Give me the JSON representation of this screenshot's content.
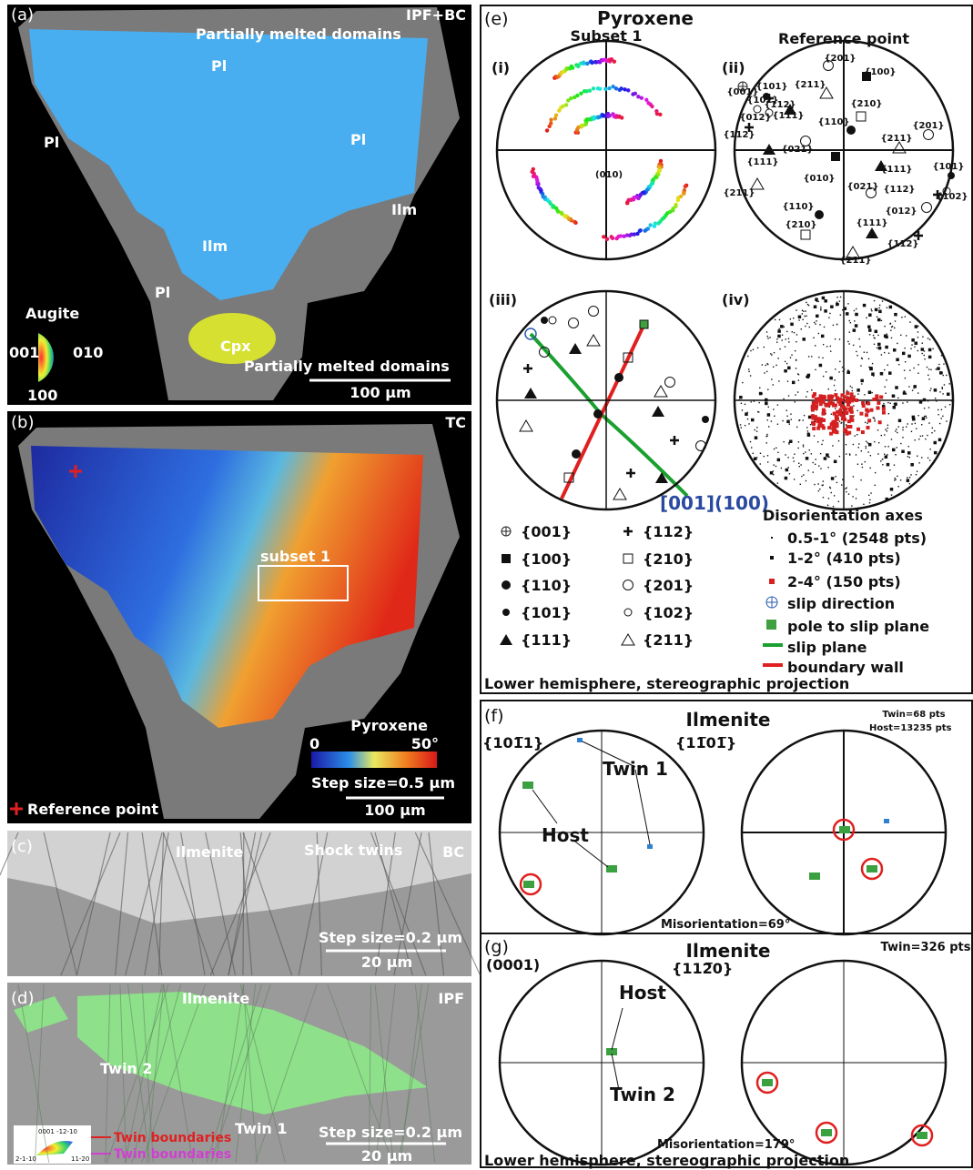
{
  "panel_a": {
    "label": "(a)",
    "mode": "IPF+BC",
    "annotations": [
      "Partially melted domains",
      "Pl",
      "Pl",
      "Pl",
      "Pl",
      "Ilm",
      "Ilm",
      "Cpx",
      "Partially melted domains"
    ],
    "key": {
      "title": "Augite",
      "labels": [
        "001",
        "010",
        "100"
      ]
    },
    "scale_bar": "100 µm"
  },
  "panel_b": {
    "label": "(b)",
    "mode": "TC",
    "subset": "subset 1",
    "colorbar": {
      "title": "Pyroxene",
      "min": "0",
      "max": "50°"
    },
    "step_size": "Step size=0.5 µm",
    "scale_bar": "100 µm",
    "reference": "Reference point"
  },
  "panel_c": {
    "label": "(c)",
    "title": "Ilmenite",
    "annotation": "Shock twins",
    "mode": "BC",
    "step_size": "Step size=0.2 µm",
    "scale_bar": "20 µm"
  },
  "panel_d": {
    "label": "(d)",
    "title": "Ilmenite",
    "mode": "IPF",
    "annotations": [
      "Twin 2",
      "Twin 1"
    ],
    "step_size": "Step size=0.2 µm",
    "scale_bar": "20 µm",
    "key_labels": [
      "0001 -12-10",
      "2-1-10",
      "11-20"
    ],
    "boundaries": [
      "Twin boundaries",
      "Twin boundaries"
    ]
  },
  "panel_e": {
    "label": "(e)",
    "title": "Pyroxene",
    "subplots": [
      "(i)",
      "(ii)",
      "(iii)",
      "(iv)"
    ],
    "subtitles": [
      "Subset 1",
      "Reference point"
    ],
    "i_label": "(010)",
    "ii_labels": [
      "{101}",
      "{201}",
      "{100}",
      "{102}",
      "{211}",
      "{001}",
      "{112}",
      "{111}",
      "{012}",
      "{210}",
      "{110}",
      "{112}",
      "{201}",
      "{021}",
      "{211}",
      "{111}",
      "{010}",
      "{111}",
      "{101}",
      "{021}",
      "{211}",
      "{112}",
      "{102}",
      "{110}",
      "{012}",
      "{210}",
      "{111}",
      "{112}",
      "{211}"
    ],
    "iii_label": "[001](100)",
    "symbol_legend": [
      "{001}",
      "{100}",
      "{110}",
      "{101}",
      "{111}",
      "{112}",
      "{210}",
      "{201}",
      "{102}",
      "{211}"
    ],
    "axes_legend": {
      "title": "Disorientation axes",
      "items": [
        "0.5-1° (2548 pts)",
        "1-2° (410 pts)",
        "2-4° (150 pts)",
        "slip direction",
        "pole to slip plane",
        "slip plane",
        "boundary wall"
      ]
    },
    "footer": "Lower hemisphere, stereographic projection"
  },
  "panel_f": {
    "label": "(f)",
    "title": "Ilmenite",
    "counts": [
      "Twin=68 pts",
      "Host=13235 pts"
    ],
    "planes": [
      "{101̅1}",
      "{11̅01̅}"
    ],
    "annotations": [
      "Twin 1",
      "Host"
    ],
    "misorientation": "Misorientation=69°"
  },
  "panel_g": {
    "label": "(g)",
    "title": "Ilmenite",
    "counts": [
      "Twin=326 pts"
    ],
    "planes": [
      "(0001)",
      "{112̅0}"
    ],
    "annotations": [
      "Host",
      "Twin 2"
    ],
    "misorientation": "Misorientation=179°",
    "footer": "Lower hemisphere, stereographic projection"
  }
}
